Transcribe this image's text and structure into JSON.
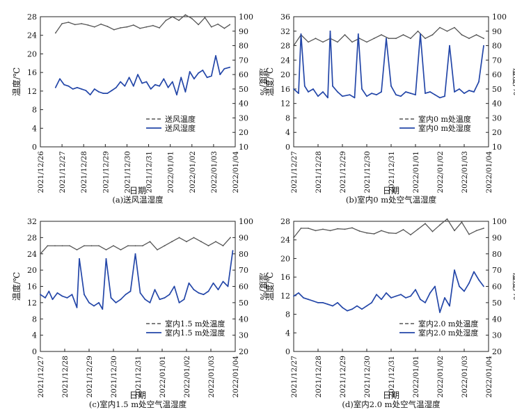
{
  "colors": {
    "temperature": "#555555",
    "humidity": "#2346a8",
    "axis": "#222222"
  },
  "chart_data": [
    {
      "type": "line",
      "caption": "(a)送风温湿度",
      "xlabel": "日期",
      "ylabel_left": "温度/℃",
      "ylabel_right": "湿度/%",
      "x_ticks": [
        "2021/12/26",
        "2021/12/27",
        "2021/12/28",
        "2021/12/29",
        "2021/12/30",
        "2021/12/31",
        "2022/01/01",
        "2022/01/02",
        "2022/01/03",
        "2022/01/04"
      ],
      "x_range": [
        0,
        9
      ],
      "ylim_left": [
        0,
        28
      ],
      "y_ticks_left": [
        0,
        4,
        8,
        12,
        16,
        20,
        24,
        28
      ],
      "ylim_right": [
        10,
        100
      ],
      "y_ticks_right": [
        10,
        20,
        30,
        40,
        50,
        60,
        70,
        80,
        90,
        100
      ],
      "legend": [
        "送风温度",
        "送风湿度"
      ],
      "legend_position": "bottom-right",
      "series": [
        {
          "name": "送风温度",
          "axis": "left",
          "style": "dashed",
          "x": [
            0.7,
            1.0,
            1.3,
            1.6,
            1.9,
            2.2,
            2.5,
            2.8,
            3.1,
            3.4,
            3.7,
            4.0,
            4.3,
            4.6,
            4.9,
            5.2,
            5.5,
            5.8,
            6.1,
            6.4,
            6.7,
            7.0,
            7.3,
            7.6,
            7.9,
            8.2,
            8.5,
            8.75
          ],
          "values": [
            24.5,
            26.5,
            26.8,
            26.3,
            26.5,
            26.2,
            25.8,
            26.4,
            25.9,
            25.2,
            25.6,
            25.8,
            26.2,
            25.5,
            25.8,
            26.1,
            25.6,
            27.2,
            28.0,
            27.2,
            28.4,
            27.6,
            26.3,
            27.8,
            25.8,
            26.4,
            25.5,
            26.3
          ]
        },
        {
          "name": "送风湿度",
          "axis": "right",
          "style": "solid",
          "x": [
            0.7,
            0.9,
            1.1,
            1.3,
            1.5,
            1.7,
            1.9,
            2.1,
            2.3,
            2.5,
            2.7,
            2.9,
            3.1,
            3.3,
            3.5,
            3.7,
            3.9,
            4.1,
            4.3,
            4.5,
            4.7,
            4.9,
            5.1,
            5.3,
            5.5,
            5.7,
            5.9,
            6.1,
            6.3,
            6.5,
            6.7,
            6.9,
            7.1,
            7.3,
            7.5,
            7.7,
            7.9,
            8.1,
            8.3,
            8.5,
            8.75
          ],
          "values": [
            51,
            57,
            53,
            52,
            50,
            51,
            50,
            49,
            46,
            50,
            48,
            47,
            47,
            49,
            51,
            55,
            52,
            58,
            52,
            60,
            54,
            55,
            50,
            53,
            52,
            57,
            51,
            55,
            46,
            58,
            48,
            62,
            57,
            61,
            63,
            58,
            59,
            73,
            60,
            64,
            65
          ]
        }
      ]
    },
    {
      "type": "line",
      "caption": "(b)室内0 m处空气温湿度",
      "xlabel": "日期",
      "ylabel_left": "温度/℃",
      "ylabel_right": "湿度/%",
      "x_ticks": [
        "2021/12/27",
        "2021/12/28",
        "2021/12/29",
        "2021/12/30",
        "2021/12/31",
        "2022/01/01",
        "2022/01/02",
        "2022/01/03",
        "2022/01/04"
      ],
      "x_range": [
        0,
        8
      ],
      "ylim_left": [
        0,
        36
      ],
      "y_ticks_left": [
        0,
        4,
        8,
        12,
        16,
        20,
        24,
        28,
        32,
        36
      ],
      "ylim_right": [
        10,
        100
      ],
      "y_ticks_right": [
        10,
        20,
        30,
        40,
        50,
        60,
        70,
        80,
        90,
        100
      ],
      "legend": [
        "室内0 m处温度",
        "室内0 m处湿度"
      ],
      "legend_position": "bottom-right",
      "series": [
        {
          "name": "室内0 m处温度",
          "axis": "left",
          "style": "dashed",
          "x": [
            0.0,
            0.3,
            0.6,
            0.9,
            1.2,
            1.5,
            1.8,
            2.1,
            2.4,
            2.7,
            3.0,
            3.3,
            3.6,
            3.9,
            4.2,
            4.5,
            4.8,
            5.1,
            5.4,
            5.7,
            6.0,
            6.3,
            6.6,
            6.9,
            7.2,
            7.5,
            7.8
          ],
          "values": [
            28,
            31,
            29,
            30,
            29,
            30,
            29,
            31,
            29,
            30,
            29,
            30,
            31,
            30,
            30,
            31,
            30,
            32,
            30,
            31,
            33,
            32,
            33,
            31,
            30,
            31,
            30
          ]
        },
        {
          "name": "室内0 m处湿度",
          "axis": "right",
          "style": "solid",
          "x": [
            0.0,
            0.2,
            0.3,
            0.45,
            0.6,
            0.8,
            1.0,
            1.2,
            1.4,
            1.5,
            1.6,
            1.8,
            2.0,
            2.3,
            2.5,
            2.65,
            2.8,
            3.0,
            3.2,
            3.4,
            3.6,
            3.8,
            4.0,
            4.2,
            4.4,
            4.6,
            4.8,
            5.0,
            5.2,
            5.4,
            5.6,
            5.8,
            6.0,
            6.2,
            6.4,
            6.6,
            6.8,
            7.0,
            7.2,
            7.4,
            7.6,
            7.8
          ],
          "values": [
            50,
            47,
            88,
            52,
            48,
            50,
            45,
            48,
            44,
            90,
            52,
            48,
            45,
            46,
            44,
            88,
            50,
            45,
            47,
            46,
            48,
            85,
            52,
            46,
            45,
            48,
            47,
            46,
            88,
            47,
            48,
            46,
            44,
            45,
            80,
            48,
            50,
            47,
            49,
            48,
            55,
            80
          ]
        }
      ]
    },
    {
      "type": "line",
      "caption": "(c)室内1.5 m处空气温湿度",
      "xlabel": "日期",
      "ylabel_left": "温度/℃",
      "ylabel_right": "湿度/%",
      "x_ticks": [
        "2021/12/27",
        "2021/12/28",
        "2021/12/29",
        "2021/12/30",
        "2021/12/31",
        "2022/01/01",
        "2022/01/02",
        "2022/01/03",
        "2022/01/04"
      ],
      "x_range": [
        0,
        8
      ],
      "ylim_left": [
        0,
        32
      ],
      "y_ticks_left": [
        0,
        4,
        8,
        12,
        16,
        20,
        24,
        28,
        32
      ],
      "ylim_right": [
        20,
        100
      ],
      "y_ticks_right": [
        20,
        30,
        40,
        50,
        60,
        70,
        80,
        90,
        100
      ],
      "legend": [
        "室内1.5 m处温度",
        "室内1.5 m处湿度"
      ],
      "legend_position": "bottom-right",
      "series": [
        {
          "name": "室内1.5 m处温度",
          "axis": "left",
          "style": "dashed",
          "x": [
            0.0,
            0.3,
            0.6,
            0.9,
            1.2,
            1.5,
            1.8,
            2.1,
            2.4,
            2.7,
            3.0,
            3.3,
            3.6,
            3.9,
            4.2,
            4.5,
            4.8,
            5.1,
            5.4,
            5.7,
            6.0,
            6.3,
            6.6,
            6.9,
            7.2,
            7.5,
            7.8
          ],
          "values": [
            24,
            26,
            26,
            26,
            26,
            25,
            26,
            26,
            26,
            25,
            26,
            25,
            26,
            26,
            26,
            27,
            25,
            26,
            27,
            28,
            27,
            28,
            27,
            26,
            27,
            26,
            28
          ]
        },
        {
          "name": "室内1.5 m处湿度",
          "axis": "right",
          "style": "solid",
          "x": [
            0.0,
            0.2,
            0.35,
            0.5,
            0.7,
            0.9,
            1.1,
            1.3,
            1.5,
            1.6,
            1.8,
            2.0,
            2.2,
            2.4,
            2.55,
            2.7,
            2.9,
            3.1,
            3.3,
            3.5,
            3.7,
            3.9,
            4.1,
            4.3,
            4.5,
            4.7,
            4.9,
            5.1,
            5.3,
            5.5,
            5.7,
            5.9,
            6.1,
            6.3,
            6.5,
            6.7,
            6.9,
            7.1,
            7.3,
            7.5,
            7.7,
            7.9
          ],
          "values": [
            55,
            53,
            57,
            52,
            56,
            54,
            53,
            55,
            47,
            77,
            55,
            50,
            48,
            50,
            46,
            77,
            53,
            50,
            52,
            55,
            57,
            80,
            56,
            52,
            50,
            58,
            52,
            53,
            55,
            60,
            50,
            52,
            62,
            58,
            56,
            55,
            57,
            62,
            58,
            63,
            60,
            82
          ]
        }
      ]
    },
    {
      "type": "line",
      "caption": "(d)室内2.0 m处空气温湿度",
      "xlabel": "日期",
      "ylabel_left": "温度/℃",
      "ylabel_right": "湿度/%",
      "x_ticks": [
        "2021/12/27",
        "2021/12/28",
        "2021/12/29",
        "2021/12/30",
        "2021/12/31",
        "2022/01/01",
        "2022/01/02",
        "2022/01/03",
        "2022/01/04"
      ],
      "x_range": [
        0,
        8
      ],
      "ylim_left": [
        0,
        28
      ],
      "y_ticks_left": [
        0,
        4,
        8,
        12,
        16,
        20,
        24,
        28
      ],
      "ylim_right": [
        20,
        100
      ],
      "y_ticks_right": [
        20,
        30,
        40,
        50,
        60,
        70,
        80,
        90,
        100
      ],
      "legend": [
        "室内2.0 m处温度",
        "室内2.0 m处湿度"
      ],
      "legend_position": "bottom-right",
      "series": [
        {
          "name": "室内2.0 m处温度",
          "axis": "left",
          "style": "dashed",
          "x": [
            0.0,
            0.3,
            0.6,
            0.9,
            1.2,
            1.5,
            1.8,
            2.1,
            2.4,
            2.7,
            3.0,
            3.3,
            3.6,
            3.9,
            4.2,
            4.5,
            4.8,
            5.1,
            5.4,
            5.7,
            6.0,
            6.3,
            6.6,
            6.9,
            7.2,
            7.5,
            7.8
          ],
          "values": [
            24.5,
            26.5,
            26.5,
            26.0,
            26.3,
            26.0,
            26.4,
            26.3,
            26.6,
            25.9,
            25.5,
            25.3,
            26.0,
            25.5,
            25.4,
            26.2,
            25.1,
            26.3,
            27.5,
            25.8,
            27.2,
            28.5,
            26.0,
            27.8,
            25.2,
            26.0,
            26.5
          ]
        },
        {
          "name": "室内2.0 m处湿度",
          "axis": "right",
          "style": "solid",
          "x": [
            0.0,
            0.2,
            0.4,
            0.6,
            0.8,
            1.0,
            1.2,
            1.4,
            1.6,
            1.8,
            2.0,
            2.2,
            2.4,
            2.6,
            2.8,
            3.0,
            3.2,
            3.4,
            3.6,
            3.8,
            4.0,
            4.2,
            4.4,
            4.6,
            4.8,
            5.0,
            5.2,
            5.4,
            5.6,
            5.8,
            6.0,
            6.2,
            6.4,
            6.6,
            6.8,
            7.0,
            7.2,
            7.4,
            7.6,
            7.8
          ],
          "values": [
            54,
            56,
            53,
            52,
            51,
            50,
            50,
            49,
            48,
            50,
            47,
            45,
            46,
            48,
            46,
            48,
            50,
            55,
            52,
            56,
            53,
            54,
            55,
            53,
            54,
            58,
            52,
            50,
            56,
            60,
            44,
            53,
            48,
            70,
            60,
            57,
            62,
            69,
            64,
            60
          ]
        }
      ]
    }
  ]
}
